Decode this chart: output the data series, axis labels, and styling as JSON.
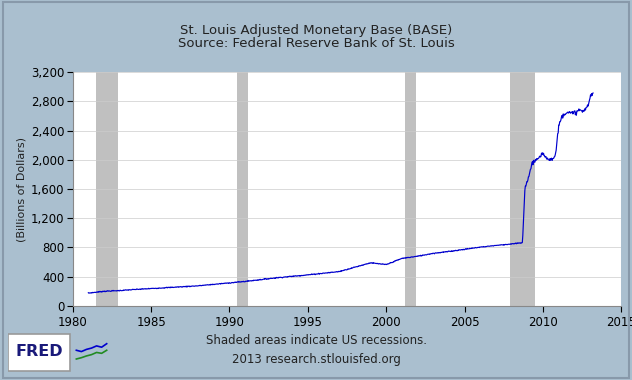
{
  "title_line1": "St. Louis Adjusted Monetary Base (BASE)",
  "title_line2": "Source: Federal Reserve Bank of St. Louis",
  "ylabel": "(Billions of Dollars)",
  "footer_line1": "Shaded areas indicate US recessions.",
  "footer_line2": "2013 research.stlouisfed.org",
  "xlim": [
    1980,
    2015
  ],
  "ylim": [
    0,
    3200
  ],
  "xticks": [
    1980,
    1985,
    1990,
    1995,
    2000,
    2005,
    2010,
    2015
  ],
  "yticks": [
    0,
    400,
    800,
    1200,
    1600,
    2000,
    2400,
    2800,
    3200
  ],
  "line_color": "#0000CD",
  "recession_color": "#C0C0C0",
  "plot_bg": "#FFFFFF",
  "outer_bg": "#AABFCF",
  "recessions": [
    [
      1981.5,
      1982.9
    ],
    [
      1990.5,
      1991.2
    ],
    [
      2001.2,
      2001.9
    ],
    [
      2007.9,
      2009.5
    ]
  ],
  "anchors": [
    [
      1981,
      175
    ],
    [
      1982,
      200
    ],
    [
      1983,
      210
    ],
    [
      1984,
      225
    ],
    [
      1986,
      250
    ],
    [
      1988,
      275
    ],
    [
      1990,
      315
    ],
    [
      1991,
      335
    ],
    [
      1993,
      385
    ],
    [
      1995,
      425
    ],
    [
      1997,
      470
    ],
    [
      1999,
      590
    ],
    [
      2000,
      565
    ],
    [
      2001,
      650
    ],
    [
      2002,
      680
    ],
    [
      2003,
      720
    ],
    [
      2004,
      745
    ],
    [
      2005,
      775
    ],
    [
      2006,
      805
    ],
    [
      2007,
      828
    ],
    [
      2008.0,
      848
    ],
    [
      2008.7,
      865
    ],
    [
      2008.85,
      1600
    ],
    [
      2009.0,
      1700
    ],
    [
      2009.3,
      1950
    ],
    [
      2009.6,
      2010
    ],
    [
      2009.8,
      2020
    ],
    [
      2010.0,
      2090
    ],
    [
      2010.2,
      2040
    ],
    [
      2010.4,
      2010
    ],
    [
      2010.6,
      2010
    ],
    [
      2010.8,
      2060
    ],
    [
      2011.0,
      2450
    ],
    [
      2011.2,
      2590
    ],
    [
      2011.4,
      2640
    ],
    [
      2011.6,
      2660
    ],
    [
      2011.8,
      2630
    ],
    [
      2012.0,
      2640
    ],
    [
      2012.3,
      2680
    ],
    [
      2012.6,
      2660
    ],
    [
      2012.9,
      2760
    ],
    [
      2013.1,
      2900
    ]
  ]
}
